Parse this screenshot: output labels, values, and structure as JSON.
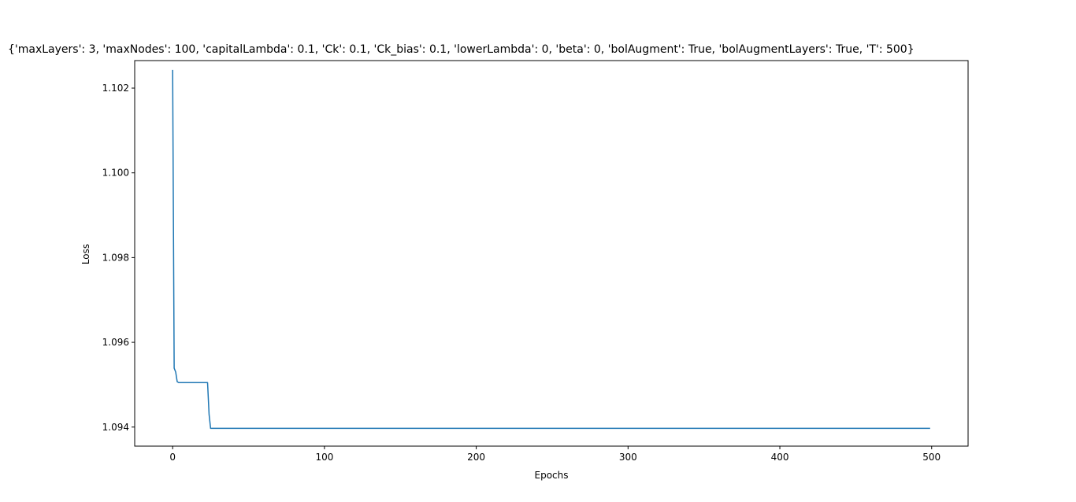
{
  "chart_data": {
    "type": "line",
    "title": "{'maxLayers': 3, 'maxNodes': 100, 'capitalLambda': 0.1, 'Ck': 0.1, 'Ck_bias': 0.1, 'lowerLambda': 0, 'beta': 0, 'bolAugment': True, 'bolAugmentLayers': True, 'T': 500}",
    "xlabel": "Epochs",
    "ylabel": "Loss",
    "xlim": [
      -25,
      524
    ],
    "ylim": [
      1.09355,
      1.10265
    ],
    "xticks": [
      0,
      100,
      200,
      300,
      400,
      500
    ],
    "xtick_labels": [
      "0",
      "100",
      "200",
      "300",
      "400",
      "500"
    ],
    "yticks": [
      1.094,
      1.096,
      1.098,
      1.1,
      1.102
    ],
    "ytick_labels": [
      "1.094",
      "1.096",
      "1.098",
      "1.100",
      "1.102"
    ],
    "grid": false,
    "series": [
      {
        "color": "#1f77b4",
        "x": [
          0,
          1,
          2,
          3,
          4,
          10,
          22,
          23,
          24,
          25,
          26,
          50,
          100,
          200,
          300,
          400,
          499
        ],
        "y": [
          1.10243,
          1.09539,
          1.0953,
          1.09507,
          1.09505,
          1.09505,
          1.09505,
          1.09505,
          1.0943,
          1.09397,
          1.09397,
          1.09397,
          1.09397,
          1.09397,
          1.09397,
          1.09397,
          1.09397
        ]
      }
    ]
  }
}
